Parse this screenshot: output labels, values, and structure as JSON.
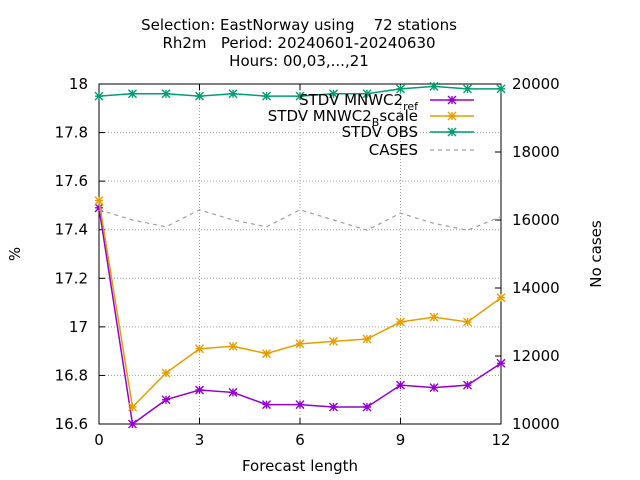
{
  "chart_data": {
    "type": "line",
    "title_lines": [
      "Selection: EastNorway using    72 stations",
      "Rh2m   Period: 20240601-20240630",
      "Hours: 00,03,...,21"
    ],
    "xlabel": "Forecast length",
    "ylabel": "%",
    "y2label": "No cases",
    "xlim": [
      0,
      12
    ],
    "ylim": [
      16.6,
      18
    ],
    "y2lim": [
      10000,
      20000
    ],
    "x_ticks": [
      "0",
      "3",
      "6",
      "9",
      "12"
    ],
    "y_ticks": [
      "16.6",
      "16.8",
      "17",
      "17.2",
      "17.4",
      "17.6",
      "17.8",
      "18"
    ],
    "y2_ticks": [
      "10000",
      "12000",
      "14000",
      "16000",
      "18000",
      "20000"
    ],
    "grid": true,
    "legend_position": "top-right",
    "x": [
      0,
      1,
      2,
      3,
      4,
      5,
      6,
      7,
      8,
      9,
      10,
      11,
      12
    ],
    "series": [
      {
        "name": "STDV MNWC2_ref",
        "legend_main": "STDV MNWC2",
        "legend_sub": "ref",
        "axis": "y",
        "color": "#9400d3",
        "style": "solid",
        "marker": "star",
        "values": [
          17.49,
          16.6,
          16.7,
          16.74,
          16.73,
          16.68,
          16.68,
          16.67,
          16.67,
          16.76,
          16.75,
          16.76,
          16.85
        ]
      },
      {
        "name": "STDV MNWC2_Bscale",
        "legend_main": "STDV MNWC2",
        "legend_sub": "B",
        "legend_tail": "scale",
        "axis": "y",
        "color": "#e69f00",
        "style": "solid",
        "marker": "star",
        "values": [
          17.52,
          16.67,
          16.81,
          16.91,
          16.92,
          16.89,
          16.93,
          16.94,
          16.95,
          17.02,
          17.04,
          17.02,
          17.12
        ]
      },
      {
        "name": "STDV OBS",
        "axis": "y",
        "color": "#009e73",
        "style": "solid",
        "marker": "star",
        "values": [
          17.95,
          17.96,
          17.96,
          17.95,
          17.96,
          17.95,
          17.95,
          17.96,
          17.96,
          17.98,
          17.99,
          17.98,
          17.98
        ]
      },
      {
        "name": "CASES",
        "axis": "y2",
        "color": "#a0a0a0",
        "style": "dashed",
        "marker": "none",
        "values": [
          16300,
          16000,
          15800,
          16300,
          16000,
          15800,
          16300,
          16000,
          15700,
          16200,
          15900,
          15700,
          16100
        ]
      }
    ]
  }
}
